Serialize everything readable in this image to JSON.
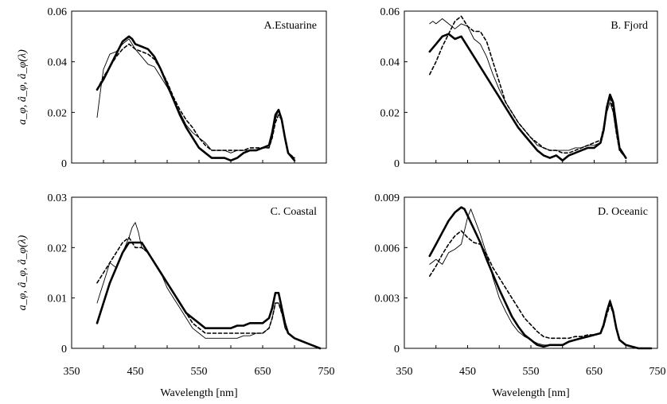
{
  "chart_data": [
    {
      "type": "line",
      "title": "A.Estuarine",
      "xlim": [
        350,
        750
      ],
      "ylim": [
        0,
        0.06
      ],
      "yticks": [
        "0",
        "0.02",
        "0.04",
        "0.06"
      ],
      "xticks": [],
      "ylabel": "a_φ, â_φ, å_φ(λ)",
      "xlabel": "",
      "series": [
        {
          "style": "thick",
          "x": [
            390,
            400,
            410,
            420,
            430,
            440,
            445,
            450,
            460,
            470,
            480,
            490,
            500,
            510,
            520,
            530,
            540,
            550,
            560,
            570,
            580,
            590,
            600,
            610,
            620,
            630,
            640,
            650,
            660,
            665,
            670,
            675,
            680,
            685,
            690,
            700
          ],
          "y": [
            0.029,
            0.033,
            0.038,
            0.043,
            0.048,
            0.05,
            0.049,
            0.047,
            0.046,
            0.045,
            0.042,
            0.037,
            0.031,
            0.025,
            0.019,
            0.014,
            0.01,
            0.006,
            0.004,
            0.002,
            0.002,
            0.002,
            0.001,
            0.002,
            0.004,
            0.005,
            0.005,
            0.006,
            0.007,
            0.012,
            0.019,
            0.021,
            0.017,
            0.01,
            0.004,
            0.001
          ]
        },
        {
          "style": "thin",
          "x": [
            390,
            395,
            400,
            410,
            420,
            430,
            440,
            445,
            450,
            460,
            470,
            480,
            490,
            500,
            510,
            520,
            530,
            540,
            550,
            560,
            570,
            580,
            590,
            600,
            610,
            620,
            630,
            640,
            650,
            660,
            665,
            670,
            675,
            680,
            685,
            690,
            700
          ],
          "y": [
            0.018,
            0.028,
            0.037,
            0.043,
            0.044,
            0.047,
            0.049,
            0.047,
            0.045,
            0.042,
            0.039,
            0.038,
            0.034,
            0.03,
            0.025,
            0.02,
            0.015,
            0.012,
            0.01,
            0.008,
            0.005,
            0.005,
            0.005,
            0.004,
            0.005,
            0.005,
            0.005,
            0.005,
            0.006,
            0.006,
            0.01,
            0.017,
            0.021,
            0.018,
            0.01,
            0.004,
            0.002
          ]
        },
        {
          "style": "dashed",
          "x": [
            390,
            400,
            410,
            420,
            430,
            440,
            445,
            450,
            460,
            470,
            480,
            490,
            500,
            510,
            520,
            530,
            540,
            550,
            560,
            570,
            580,
            590,
            600,
            610,
            620,
            630,
            640,
            650,
            660,
            665,
            670,
            675,
            680,
            685,
            690,
            700
          ],
          "y": [
            0.029,
            0.034,
            0.038,
            0.042,
            0.045,
            0.047,
            0.046,
            0.045,
            0.044,
            0.043,
            0.041,
            0.037,
            0.032,
            0.026,
            0.021,
            0.017,
            0.014,
            0.01,
            0.007,
            0.005,
            0.005,
            0.005,
            0.005,
            0.005,
            0.005,
            0.006,
            0.006,
            0.006,
            0.006,
            0.01,
            0.016,
            0.019,
            0.017,
            0.01,
            0.004,
            0.002
          ]
        }
      ]
    },
    {
      "type": "line",
      "title": "B. Fjord",
      "xlim": [
        350,
        750
      ],
      "ylim": [
        0,
        0.06
      ],
      "yticks": [
        "0",
        "0.02",
        "0.04",
        "0.06"
      ],
      "xticks": [],
      "ylabel": "",
      "xlabel": "",
      "series": [
        {
          "style": "thick",
          "x": [
            390,
            400,
            410,
            420,
            430,
            440,
            450,
            460,
            470,
            480,
            490,
            500,
            510,
            520,
            530,
            540,
            550,
            560,
            570,
            580,
            590,
            600,
            610,
            620,
            630,
            640,
            650,
            660,
            665,
            670,
            675,
            680,
            685,
            690,
            700
          ],
          "y": [
            0.044,
            0.047,
            0.05,
            0.051,
            0.049,
            0.05,
            0.046,
            0.042,
            0.038,
            0.034,
            0.03,
            0.026,
            0.022,
            0.018,
            0.014,
            0.011,
            0.008,
            0.005,
            0.003,
            0.002,
            0.003,
            0.001,
            0.003,
            0.004,
            0.005,
            0.006,
            0.006,
            0.008,
            0.013,
            0.022,
            0.027,
            0.024,
            0.015,
            0.006,
            0.002
          ]
        },
        {
          "style": "thin",
          "x": [
            390,
            395,
            400,
            410,
            420,
            430,
            440,
            450,
            460,
            470,
            480,
            490,
            500,
            510,
            520,
            530,
            540,
            550,
            560,
            570,
            580,
            590,
            600,
            610,
            620,
            630,
            640,
            650,
            660,
            665,
            670,
            675,
            680,
            685,
            690,
            700
          ],
          "y": [
            0.055,
            0.056,
            0.055,
            0.057,
            0.055,
            0.053,
            0.055,
            0.054,
            0.049,
            0.047,
            0.042,
            0.035,
            0.029,
            0.024,
            0.02,
            0.016,
            0.013,
            0.01,
            0.007,
            0.006,
            0.005,
            0.005,
            0.005,
            0.005,
            0.006,
            0.006,
            0.007,
            0.007,
            0.008,
            0.012,
            0.02,
            0.024,
            0.02,
            0.012,
            0.005,
            0.002
          ]
        },
        {
          "style": "dashed",
          "x": [
            390,
            400,
            410,
            420,
            430,
            440,
            445,
            450,
            460,
            470,
            480,
            490,
            500,
            510,
            520,
            530,
            540,
            550,
            560,
            570,
            580,
            590,
            600,
            610,
            620,
            630,
            640,
            650,
            660,
            665,
            670,
            675,
            680,
            685,
            690,
            700
          ],
          "y": [
            0.035,
            0.04,
            0.046,
            0.051,
            0.056,
            0.058,
            0.056,
            0.054,
            0.052,
            0.052,
            0.048,
            0.04,
            0.032,
            0.024,
            0.02,
            0.016,
            0.013,
            0.01,
            0.008,
            0.006,
            0.005,
            0.005,
            0.004,
            0.004,
            0.005,
            0.006,
            0.007,
            0.008,
            0.009,
            0.014,
            0.022,
            0.026,
            0.021,
            0.012,
            0.005,
            0.002
          ]
        }
      ]
    },
    {
      "type": "line",
      "title": "C. Coastal",
      "xlim": [
        350,
        750
      ],
      "ylim": [
        0,
        0.03
      ],
      "yticks": [
        "0",
        "0.01",
        "0.02",
        "0.03"
      ],
      "xticks": [
        "350",
        "450",
        "550",
        "650",
        "750"
      ],
      "ylabel": "a_φ, â_φ, å_φ(λ)",
      "xlabel": "Wavelength [nm]",
      "series": [
        {
          "style": "thick",
          "x": [
            390,
            400,
            410,
            420,
            430,
            440,
            450,
            460,
            470,
            480,
            490,
            500,
            510,
            520,
            530,
            540,
            550,
            560,
            570,
            580,
            590,
            600,
            610,
            620,
            630,
            640,
            650,
            660,
            665,
            670,
            675,
            680,
            685,
            690,
            700,
            710,
            720,
            730,
            740
          ],
          "y": [
            0.005,
            0.009,
            0.013,
            0.016,
            0.019,
            0.021,
            0.021,
            0.021,
            0.019,
            0.017,
            0.015,
            0.013,
            0.011,
            0.009,
            0.007,
            0.006,
            0.005,
            0.004,
            0.004,
            0.004,
            0.004,
            0.004,
            0.0045,
            0.0045,
            0.005,
            0.005,
            0.005,
            0.006,
            0.008,
            0.011,
            0.011,
            0.008,
            0.005,
            0.003,
            0.002,
            0.0015,
            0.001,
            0.0005,
            0.0
          ]
        },
        {
          "style": "thin",
          "x": [
            390,
            395,
            400,
            410,
            420,
            430,
            440,
            445,
            450,
            455,
            460,
            470,
            480,
            490,
            500,
            510,
            520,
            530,
            540,
            550,
            560,
            570,
            580,
            590,
            600,
            610,
            620,
            630,
            640,
            650,
            660,
            665,
            670,
            675,
            680,
            685,
            690,
            700,
            710,
            720,
            730,
            740
          ],
          "y": [
            0.009,
            0.011,
            0.013,
            0.017,
            0.016,
            0.019,
            0.022,
            0.024,
            0.025,
            0.023,
            0.02,
            0.019,
            0.017,
            0.015,
            0.012,
            0.01,
            0.008,
            0.006,
            0.004,
            0.003,
            0.002,
            0.002,
            0.002,
            0.002,
            0.002,
            0.002,
            0.0025,
            0.0025,
            0.003,
            0.003,
            0.004,
            0.006,
            0.009,
            0.009,
            0.007,
            0.004,
            0.003,
            0.002,
            0.0015,
            0.001,
            0.0005,
            0.0
          ]
        },
        {
          "style": "dashed",
          "x": [
            390,
            400,
            410,
            420,
            430,
            440,
            445,
            450,
            460,
            470,
            480,
            490,
            500,
            510,
            520,
            530,
            540,
            550,
            560,
            570,
            580,
            590,
            600,
            610,
            620,
            630,
            640,
            650,
            660,
            665,
            670,
            675,
            680,
            685,
            690,
            700,
            710,
            720,
            730,
            740
          ],
          "y": [
            0.013,
            0.015,
            0.017,
            0.019,
            0.021,
            0.022,
            0.021,
            0.02,
            0.02,
            0.019,
            0.017,
            0.015,
            0.013,
            0.011,
            0.009,
            0.007,
            0.005,
            0.004,
            0.003,
            0.003,
            0.003,
            0.003,
            0.003,
            0.003,
            0.003,
            0.003,
            0.003,
            0.003,
            0.004,
            0.006,
            0.009,
            0.009,
            0.007,
            0.005,
            0.003,
            0.002,
            0.0015,
            0.001,
            0.0005,
            0.0
          ]
        }
      ]
    },
    {
      "type": "line",
      "title": "D. Oceanic",
      "xlim": [
        350,
        750
      ],
      "ylim": [
        0,
        0.009
      ],
      "yticks": [
        "0",
        "0.003",
        "0.006",
        "0.009"
      ],
      "xticks": [
        "350",
        "450",
        "550",
        "650",
        "750"
      ],
      "ylabel": "",
      "xlabel": "Wavelength [nm]",
      "series": [
        {
          "style": "thick",
          "x": [
            390,
            400,
            410,
            420,
            430,
            440,
            445,
            450,
            460,
            470,
            480,
            490,
            500,
            510,
            520,
            530,
            540,
            550,
            560,
            570,
            580,
            590,
            600,
            610,
            620,
            630,
            640,
            650,
            660,
            665,
            670,
            675,
            680,
            685,
            690,
            700,
            710,
            720,
            740
          ],
          "y": [
            0.0055,
            0.0062,
            0.0069,
            0.0076,
            0.0081,
            0.0084,
            0.0083,
            0.0079,
            0.0071,
            0.0063,
            0.0053,
            0.0044,
            0.0035,
            0.0027,
            0.0019,
            0.0013,
            0.0008,
            0.0005,
            0.0002,
            0.0001,
            0.0002,
            0.0002,
            0.0002,
            0.0004,
            0.0005,
            0.0006,
            0.0007,
            0.0008,
            0.0009,
            0.0014,
            0.0022,
            0.0028,
            0.0022,
            0.0012,
            0.0005,
            0.0002,
            0.0001,
            0.0,
            0.0
          ]
        },
        {
          "style": "thin",
          "x": [
            390,
            400,
            410,
            420,
            430,
            440,
            450,
            455,
            460,
            470,
            480,
            490,
            500,
            510,
            520,
            530,
            540,
            550,
            560,
            570,
            580,
            590,
            600,
            610,
            620,
            630,
            640,
            650,
            660,
            665,
            670,
            675,
            680,
            685,
            690,
            700,
            710,
            720,
            740
          ],
          "y": [
            0.005,
            0.0053,
            0.005,
            0.0057,
            0.0059,
            0.0062,
            0.0078,
            0.0083,
            0.0078,
            0.0068,
            0.0056,
            0.0042,
            0.003,
            0.0022,
            0.0015,
            0.001,
            0.0007,
            0.0005,
            0.0003,
            0.0002,
            0.0002,
            0.0002,
            0.0002,
            0.0004,
            0.0005,
            0.0006,
            0.0007,
            0.0008,
            0.0009,
            0.0013,
            0.0021,
            0.0029,
            0.0023,
            0.0013,
            0.0005,
            0.0002,
            0.0001,
            0.0,
            0.0
          ]
        },
        {
          "style": "dashed",
          "x": [
            390,
            400,
            410,
            420,
            430,
            440,
            445,
            450,
            460,
            470,
            480,
            490,
            500,
            510,
            520,
            530,
            540,
            550,
            560,
            570,
            580,
            590,
            600,
            610,
            620,
            630,
            640,
            650,
            660,
            665,
            670,
            675,
            680,
            685,
            690,
            700,
            710,
            720,
            740
          ],
          "y": [
            0.0043,
            0.0049,
            0.0056,
            0.0062,
            0.0067,
            0.007,
            0.0068,
            0.0066,
            0.0063,
            0.0062,
            0.0056,
            0.0048,
            0.0042,
            0.0036,
            0.003,
            0.0024,
            0.0018,
            0.0014,
            0.001,
            0.0007,
            0.0006,
            0.0006,
            0.0006,
            0.0006,
            0.0007,
            0.0007,
            0.0008,
            0.0008,
            0.0009,
            0.0013,
            0.002,
            0.0026,
            0.0021,
            0.0012,
            0.0005,
            0.0002,
            0.0001,
            0.0,
            0.0
          ]
        }
      ]
    }
  ]
}
